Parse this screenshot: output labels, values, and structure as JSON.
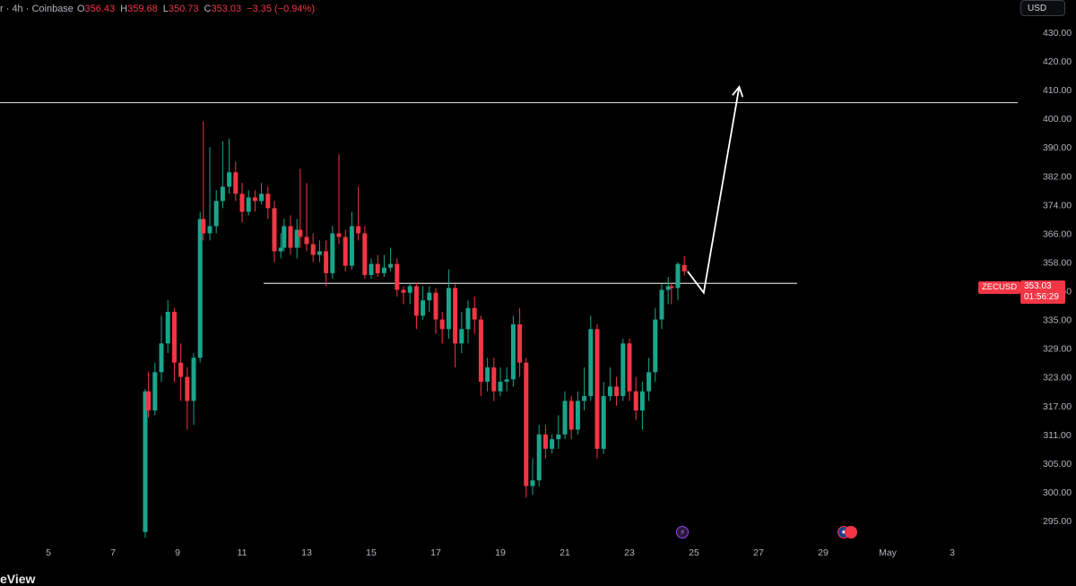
{
  "header": {
    "symbol_text": "r · 4h · Coinbase",
    "open_label": "O",
    "open": "356.43",
    "high_label": "H",
    "high": "359.68",
    "low_label": "L",
    "low": "350.73",
    "close_label": "C",
    "close": "353.03",
    "change": "−3.35 (−0.94%)"
  },
  "currency_button": "USD",
  "price_tag": {
    "symbol": "ZECUSD",
    "price": "353.03",
    "countdown": "01:56:29"
  },
  "watermark": "eView",
  "colors": {
    "up": "#1aa58b",
    "down": "#f23645",
    "background": "#000000",
    "axis_text": "#b2b5be",
    "line": "#cfcfcf"
  },
  "chart_data": {
    "type": "candlestick",
    "title": "",
    "xlabel": "",
    "ylabel": "",
    "ylim": [
      292,
      432
    ],
    "y_ticks": [
      "430.00",
      "420.00",
      "410.00",
      "400.00",
      "390.00",
      "382.00",
      "374.00",
      "366.00",
      "358.00",
      "342.50",
      "335.00",
      "329.00",
      "323.00",
      "317.00",
      "311.00",
      "305.00",
      "300.00",
      "295.00"
    ],
    "x_ticks": [
      "5",
      "7",
      "9",
      "11",
      "13",
      "15",
      "17",
      "19",
      "21",
      "23",
      "25",
      "27",
      "29",
      "May",
      "3"
    ],
    "horizontal_lines": [
      {
        "price": 405.5,
        "extent": "full"
      },
      {
        "price": 346.5,
        "extent": "13 to 26"
      }
    ],
    "projection_arrow": [
      {
        "day": 24.8,
        "price": 353
      },
      {
        "day": 25.3,
        "price": 342
      },
      {
        "day": 26.4,
        "price": 411
      }
    ],
    "event_icons": [
      "lightning-event",
      "us-flag-event"
    ],
    "candles": [
      [
        8.0,
        293.0,
        320.0,
        292.0,
        320.5
      ],
      [
        8.1,
        320.0,
        316.0,
        314.5,
        324.0
      ],
      [
        8.3,
        316.0,
        324.0,
        315.0,
        326.0
      ],
      [
        8.5,
        324.0,
        330.0,
        322.0,
        336.0
      ],
      [
        8.7,
        330.0,
        337.0,
        328.0,
        340.0
      ],
      [
        8.9,
        337.0,
        326.0,
        322.0,
        338.0
      ],
      [
        9.1,
        326.0,
        323.0,
        318.0,
        330.0
      ],
      [
        9.3,
        323.0,
        318.0,
        312.0,
        325.0
      ],
      [
        9.5,
        318.0,
        327.0,
        313.0,
        328.0
      ],
      [
        9.7,
        327.0,
        370.0,
        326.0,
        372.0
      ],
      [
        9.8,
        370.0,
        366.0,
        364.0,
        399.0
      ],
      [
        10.0,
        366.0,
        368.0,
        364.0,
        390.0
      ],
      [
        10.2,
        368.0,
        375.0,
        366.0,
        378.0
      ],
      [
        10.4,
        375.0,
        379.0,
        373.0,
        392.0
      ],
      [
        10.6,
        379.0,
        383.0,
        377.0,
        393.0
      ],
      [
        10.8,
        383.0,
        377.0,
        375.0,
        386.0
      ],
      [
        11.0,
        377.0,
        372.0,
        369.0,
        380.0
      ],
      [
        11.2,
        372.0,
        376.0,
        371.0,
        378.0
      ],
      [
        11.4,
        376.0,
        375.0,
        372.0,
        378.0
      ],
      [
        11.6,
        375.0,
        377.0,
        374.0,
        380.0
      ],
      [
        11.8,
        377.0,
        373.0,
        370.0,
        379.0
      ],
      [
        12.0,
        373.0,
        361.0,
        358.0,
        375.0
      ],
      [
        12.2,
        361.0,
        362.0,
        359.0,
        366.0
      ],
      [
        12.3,
        362.0,
        368.0,
        361.0,
        370.0
      ],
      [
        12.5,
        368.0,
        362.0,
        360.0,
        371.0
      ],
      [
        12.7,
        362.0,
        367.0,
        359.0,
        370.0
      ],
      [
        12.8,
        367.0,
        365.0,
        362.0,
        384.0
      ],
      [
        13.0,
        365.0,
        363.0,
        361.0,
        380.0
      ],
      [
        13.2,
        363.0,
        360.0,
        358.0,
        366.0
      ],
      [
        13.4,
        360.0,
        361.0,
        358.0,
        364.0
      ],
      [
        13.6,
        361.0,
        352.0,
        345.0,
        364.0
      ],
      [
        13.8,
        352.0,
        366.0,
        349.0,
        368.0
      ],
      [
        14.0,
        366.0,
        365.0,
        363.0,
        388.0
      ],
      [
        14.2,
        365.0,
        356.0,
        353.0,
        367.0
      ],
      [
        14.4,
        356.0,
        368.0,
        354.0,
        372.0
      ],
      [
        14.6,
        368.0,
        366.0,
        364.0,
        379.0
      ],
      [
        14.8,
        366.0,
        351.0,
        349.0,
        368.0
      ],
      [
        15.0,
        351.0,
        357.0,
        349.0,
        359.0
      ],
      [
        15.2,
        357.0,
        352.0,
        350.0,
        360.0
      ],
      [
        15.4,
        352.0,
        355.0,
        350.0,
        360.0
      ],
      [
        15.6,
        355.0,
        357.0,
        353.0,
        362.0
      ],
      [
        15.8,
        357.0,
        343.0,
        341.0,
        359.0
      ],
      [
        16.0,
        343.0,
        342.0,
        339.0,
        345.0
      ],
      [
        16.2,
        342.0,
        345.0,
        339.0,
        347.0
      ],
      [
        16.4,
        345.0,
        336.0,
        333.0,
        347.0
      ],
      [
        16.6,
        336.0,
        340.0,
        335.0,
        345.0
      ],
      [
        16.8,
        340.0,
        342.0,
        337.0,
        345.0
      ],
      [
        17.0,
        342.0,
        335.0,
        332.0,
        344.0
      ],
      [
        17.2,
        335.0,
        333.0,
        330.0,
        337.0
      ],
      [
        17.4,
        333.0,
        344.0,
        331.0,
        354.0
      ],
      [
        17.6,
        344.0,
        330.0,
        325.0,
        346.0
      ],
      [
        17.8,
        330.0,
        333.0,
        328.0,
        337.0
      ],
      [
        18.0,
        333.0,
        338.0,
        330.0,
        340.0
      ],
      [
        18.2,
        338.0,
        335.0,
        332.0,
        341.0
      ],
      [
        18.4,
        335.0,
        322.0,
        319.0,
        336.0
      ],
      [
        18.6,
        322.0,
        325.0,
        320.0,
        327.0
      ],
      [
        18.8,
        325.0,
        320.0,
        318.0,
        327.0
      ],
      [
        19.0,
        320.0,
        322.0,
        319.0,
        325.0
      ],
      [
        19.2,
        322.0,
        322.5,
        320.0,
        325.0
      ],
      [
        19.4,
        322.5,
        334.0,
        321.0,
        336.0
      ],
      [
        19.6,
        334.0,
        326.0,
        323.0,
        338.0
      ],
      [
        19.8,
        326.0,
        301.0,
        299.0,
        327.0
      ],
      [
        20.0,
        301.0,
        302.0,
        299.5,
        306.0
      ],
      [
        20.2,
        302.0,
        311.0,
        301.0,
        313.0
      ],
      [
        20.4,
        311.0,
        308.0,
        306.0,
        313.0
      ],
      [
        20.6,
        308.0,
        310.0,
        307.0,
        311.0
      ],
      [
        20.8,
        310.0,
        311.0,
        308.0,
        315.0
      ],
      [
        21.0,
        311.0,
        318.0,
        310.0,
        320.0
      ],
      [
        21.2,
        318.0,
        312.0,
        310.0,
        319.0
      ],
      [
        21.4,
        312.0,
        318.0,
        311.0,
        320.0
      ],
      [
        21.6,
        318.0,
        319.0,
        316.0,
        325.0
      ],
      [
        21.8,
        319.0,
        333.0,
        318.0,
        336.0
      ],
      [
        22.0,
        333.0,
        308.0,
        306.0,
        334.0
      ],
      [
        22.2,
        308.0,
        319.0,
        307.0,
        322.0
      ],
      [
        22.4,
        319.0,
        321.0,
        318.0,
        325.0
      ],
      [
        22.6,
        321.0,
        319.0,
        317.0,
        323.0
      ],
      [
        22.8,
        319.0,
        330.0,
        318.0,
        331.0
      ],
      [
        23.0,
        330.0,
        320.0,
        318.0,
        331.0
      ],
      [
        23.2,
        320.0,
        316.0,
        314.0,
        323.0
      ],
      [
        23.4,
        316.0,
        320.0,
        312.0,
        322.0
      ],
      [
        23.6,
        320.0,
        324.0,
        318.0,
        327.0
      ],
      [
        23.8,
        324.0,
        335.0,
        322.0,
        338.0
      ],
      [
        24.0,
        335.0,
        343.0,
        333.0,
        346.0
      ],
      [
        24.2,
        343.0,
        345.0,
        339.0,
        350.0
      ],
      [
        24.3,
        345.0,
        344.0,
        339.0,
        347.0
      ],
      [
        24.5,
        344.0,
        357.0,
        340.0,
        358.0
      ],
      [
        24.7,
        356.4,
        353.0,
        350.7,
        359.7
      ]
    ]
  }
}
